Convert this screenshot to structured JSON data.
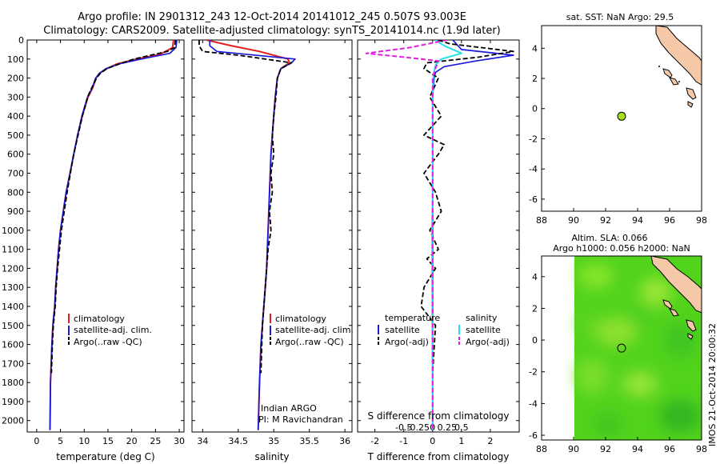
{
  "title": {
    "line1": "Argo profile: IN 2901312_243 12-Oct-2014 20141012_245 0.507S 93.003E",
    "line2": "Climatology: CARS2009. Satellite-adjusted climatology: synTS_20141014.nc (1.9d later)"
  },
  "colors": {
    "clim": "#e02020",
    "sat": "#1a1ad8",
    "argo": "#000000",
    "sal_sat": "#22e0e8",
    "sal_argo": "#e020e0",
    "land": "#f5c8a8",
    "point": "#a8e020"
  },
  "watermark": "IMOS 21-Oct-2014 20:00:32",
  "chart_data": [
    {
      "type": "line",
      "name": "temperature-profile",
      "xlabel": "temperature (deg C)",
      "xlim": [
        -2,
        31
      ],
      "ylim": [
        2060,
        0
      ],
      "xticks": [
        0,
        5,
        10,
        15,
        20,
        25,
        30
      ],
      "yticks": [
        0,
        100,
        200,
        300,
        400,
        500,
        600,
        700,
        800,
        900,
        1000,
        1100,
        1200,
        1300,
        1400,
        1500,
        1600,
        1700,
        1800,
        1900,
        2000
      ],
      "legend": [
        "climatology",
        "satellite-adj. clim.",
        "Argo(..raw -QC)"
      ],
      "series": [
        {
          "name": "climatology",
          "style": "clim",
          "x": [
            28.8,
            28.6,
            26.0,
            21.0,
            17.0,
            14.8,
            13.2,
            12.5,
            11.8,
            10.8,
            9.6,
            8.6,
            7.8,
            7.0,
            6.2,
            5.6,
            5.0,
            4.6,
            4.3,
            4.0,
            3.8,
            3.4,
            3.2,
            2.9,
            2.8
          ],
          "y": [
            0,
            40,
            75,
            100,
            125,
            150,
            175,
            200,
            250,
            300,
            400,
            500,
            600,
            700,
            800,
            900,
            1000,
            1100,
            1200,
            1300,
            1400,
            1500,
            1600,
            1800,
            2050
          ]
        },
        {
          "name": "satellite-adj. clim.",
          "style": "sat",
          "x": [
            29.5,
            29.3,
            28.0,
            22.0,
            17.5,
            14.6,
            13.2,
            12.4,
            11.7,
            10.7,
            9.5,
            8.6,
            7.8,
            7.0,
            6.2,
            5.6,
            5.0,
            4.6,
            4.3,
            4.0,
            3.8,
            3.4,
            3.2,
            2.9,
            2.8
          ],
          "y": [
            0,
            40,
            70,
            100,
            125,
            150,
            175,
            200,
            250,
            300,
            400,
            500,
            600,
            700,
            800,
            900,
            1000,
            1100,
            1200,
            1300,
            1400,
            1500,
            1600,
            1800,
            2050
          ]
        },
        {
          "name": "Argo",
          "style": "argo",
          "x": [
            29.2,
            29.1,
            29.0,
            27.5,
            24.0,
            20.5,
            17.5,
            14.8,
            13.4,
            12.6,
            11.6,
            10.7,
            9.6,
            8.7,
            7.8,
            7.1,
            6.4,
            5.8,
            5.2,
            4.8,
            4.4,
            4.1,
            3.9,
            3.5,
            3.3,
            3.1
          ],
          "y": [
            0,
            20,
            40,
            60,
            80,
            100,
            125,
            150,
            175,
            200,
            250,
            300,
            400,
            500,
            600,
            700,
            800,
            900,
            1000,
            1100,
            1200,
            1300,
            1400,
            1500,
            1600,
            1750
          ]
        }
      ]
    },
    {
      "type": "line",
      "name": "salinity-profile",
      "xlabel": "salinity",
      "xlim": [
        33.85,
        36.1
      ],
      "ylim": [
        2060,
        0
      ],
      "xticks": [
        34,
        34.5,
        35,
        35.5,
        36
      ],
      "legend": [
        "climatology",
        "satellite-adj. clim.",
        "Argo(..raw -QC)"
      ],
      "annotations": [
        "Indian ARGO",
        "PI: M Ravichandran"
      ],
      "series": [
        {
          "name": "climatology",
          "style": "clim",
          "x": [
            34.05,
            34.4,
            34.8,
            35.2,
            35.22,
            35.1,
            35.05,
            35.02,
            35.0,
            34.98,
            34.96,
            34.94,
            34.92,
            34.9,
            34.88,
            34.86,
            34.84,
            34.82,
            34.8,
            34.78
          ],
          "y": [
            0,
            30,
            60,
            100,
            120,
            150,
            200,
            300,
            400,
            500,
            600,
            800,
            1000,
            1200,
            1300,
            1400,
            1500,
            1600,
            1800,
            2050
          ]
        },
        {
          "name": "satellite-adj. clim.",
          "style": "sat",
          "x": [
            34.1,
            34.1,
            34.2,
            35.3,
            35.25,
            35.1,
            35.05,
            35.02,
            35.0,
            34.98,
            34.96,
            34.94,
            34.92,
            34.9,
            34.88,
            34.86,
            34.84,
            34.82,
            34.8,
            34.78
          ],
          "y": [
            0,
            30,
            60,
            100,
            120,
            150,
            200,
            300,
            400,
            500,
            600,
            800,
            1000,
            1200,
            1300,
            1400,
            1500,
            1600,
            1800,
            2050
          ]
        },
        {
          "name": "Argo",
          "style": "argo",
          "x": [
            33.95,
            33.95,
            34.0,
            34.5,
            35.25,
            35.1,
            35.05,
            35.03,
            35.0,
            34.98,
            35.0,
            34.96,
            34.98,
            34.94,
            34.96,
            34.92,
            34.9,
            34.88,
            34.86,
            34.84,
            34.82
          ],
          "y": [
            0,
            30,
            60,
            80,
            120,
            150,
            200,
            300,
            400,
            500,
            600,
            700,
            800,
            900,
            1000,
            1100,
            1200,
            1300,
            1400,
            1500,
            1750
          ]
        }
      ]
    },
    {
      "type": "line",
      "name": "difference-profile",
      "xlabel": "T difference from climatology",
      "toplabel": "S difference from climatology",
      "xlim": [
        -2.6,
        3
      ],
      "ylim": [
        2060,
        0
      ],
      "xticks": [
        -2,
        -1,
        0,
        1,
        2
      ],
      "sticks": [
        "-0.5",
        "-0.25",
        "0",
        "0.25",
        "0.5"
      ],
      "legend": {
        "temperature": "temperature",
        "salinity": "salinity",
        "satellite": "satellite",
        "argo": "Argo(-adj)"
      },
      "series": [
        {
          "name": "temperature-satellite",
          "style": "sat",
          "x": [
            0.7,
            1.0,
            2.8,
            1.5,
            0.4,
            0.1,
            0.05,
            0.0,
            0.0,
            0.0,
            0.0,
            0.0
          ],
          "y": [
            0,
            50,
            80,
            110,
            140,
            170,
            200,
            300,
            500,
            1000,
            1500,
            2050
          ]
        },
        {
          "name": "temperature-argo",
          "style": "argo",
          "x": [
            0.2,
            0.6,
            2.8,
            1.6,
            -0.2,
            -0.3,
            0.2,
            -0.1,
            0.3,
            -0.3,
            0.4,
            0.2,
            -0.3,
            0.1,
            0.3,
            -0.1,
            0.2,
            -0.2,
            0.1,
            -0.3,
            -0.4,
            0.1,
            0.0
          ],
          "y": [
            0,
            20,
            60,
            90,
            120,
            150,
            200,
            300,
            400,
            500,
            550,
            600,
            700,
            800,
            900,
            1000,
            1100,
            1150,
            1200,
            1300,
            1400,
            1500,
            1750
          ]
        },
        {
          "name": "salinity-satellite",
          "style": "sal_sat",
          "x": [
            0.1,
            0.4,
            1.0,
            0.3,
            0.1,
            0.05,
            0.02,
            0.0,
            0.0,
            -0.02,
            0.0
          ],
          "y": [
            0,
            30,
            70,
            100,
            130,
            170,
            200,
            300,
            800,
            1000,
            2050
          ]
        },
        {
          "name": "salinity-argo",
          "style": "sal_argo",
          "x": [
            0.5,
            -0.8,
            -2.3,
            -1.0,
            0.2,
            0.1,
            0.0,
            0.0,
            0.0
          ],
          "y": [
            0,
            40,
            70,
            90,
            110,
            150,
            200,
            500,
            2050
          ]
        }
      ]
    },
    {
      "type": "scatter",
      "name": "sst-map",
      "title": "sat. SST: NaN Argo: 29.5",
      "xlim": [
        88,
        98
      ],
      "ylim": [
        -6.8,
        5.5
      ],
      "xticks": [
        88,
        90,
        92,
        94,
        96,
        98
      ],
      "yticks": [
        -6,
        -4,
        -2,
        0,
        2,
        4
      ],
      "points": [
        {
          "x": 93.0,
          "y": -0.507
        }
      ]
    },
    {
      "type": "heatmap",
      "name": "sla-map",
      "title1": "Altim. SLA: 0.066",
      "title2": "Argo h1000: 0.056 h2000: NaN",
      "xlim": [
        88,
        98
      ],
      "ylim": [
        -6.3,
        5.3
      ],
      "xticks": [
        88,
        90,
        92,
        94,
        96,
        98
      ],
      "yticks": [
        -6,
        -4,
        -2,
        0,
        2,
        4
      ],
      "data_xlim": [
        90,
        98
      ],
      "points": [
        {
          "x": 93.0,
          "y": -0.507
        }
      ]
    }
  ]
}
